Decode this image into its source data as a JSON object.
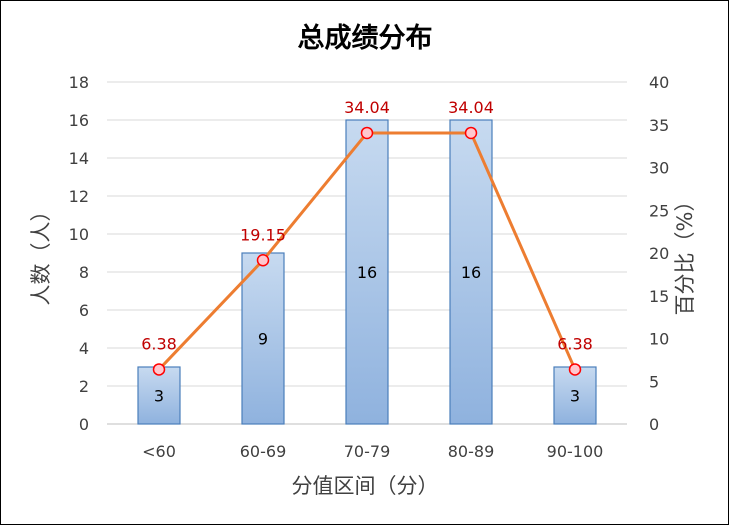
{
  "chart_data": {
    "type": "bar",
    "title": "总成绩分布",
    "categories": [
      "<60",
      "60-69",
      "70-79",
      "80-89",
      "90-100"
    ],
    "series": [
      {
        "type": "bar",
        "axis": "left",
        "values": [
          3,
          9,
          16,
          16,
          3
        ],
        "labels": [
          "3",
          "9",
          "16",
          "16",
          "3"
        ],
        "color": "#9BBBE0",
        "gradient_from": "#C7DAF0",
        "gradient_to": "#8FB2DE",
        "border_color": "#4A7EBB"
      },
      {
        "type": "line",
        "axis": "right",
        "values": [
          6.38,
          19.15,
          34.04,
          34.04,
          6.38
        ],
        "labels": [
          "6.38",
          "19.15",
          "34.04",
          "34.04",
          "6.38"
        ],
        "color": "#ED7D31",
        "marker_fill": "#FFC7CE",
        "marker_stroke": "#FF0000",
        "label_color": "#C00000"
      }
    ],
    "xlabel": "分值区间（分）",
    "ylabel": "人数（人）",
    "y2label": "百分比（%）",
    "ylim": [
      0,
      18
    ],
    "y_ticks": [
      "0",
      "2",
      "4",
      "6",
      "8",
      "10",
      "12",
      "14",
      "16",
      "18"
    ],
    "y2lim": [
      0,
      40
    ],
    "y2_ticks": [
      "0",
      "5",
      "10",
      "15",
      "20",
      "25",
      "30",
      "35",
      "40"
    ],
    "grid": true,
    "grid_color": "#D9D9D9",
    "legend": "none"
  }
}
